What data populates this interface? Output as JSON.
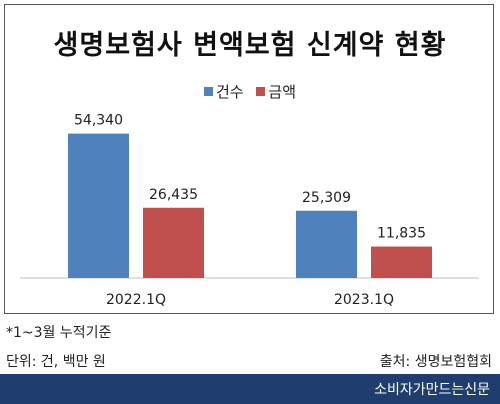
{
  "chart_data": {
    "type": "bar",
    "title": "생명보험사 변액보험 신계약 현황",
    "categories": [
      "2022.1Q",
      "2023.1Q"
    ],
    "series": [
      {
        "name": "건수",
        "values": [
          54340,
          25309
        ],
        "labels": [
          "54,340",
          "25,309"
        ],
        "color": "#4f81bd"
      },
      {
        "name": "금액",
        "values": [
          26435,
          11835
        ],
        "labels": [
          "26,435",
          "11,835"
        ],
        "color": "#c0504d"
      }
    ],
    "ylim": [
      0,
      70000
    ],
    "grid": false,
    "legend": "top-center"
  },
  "footnote": "*1~3월 누적기준",
  "unit": "단위: 건, 백만 원",
  "source": "출처: 생명보험협회",
  "brand": "소비자가만드는신문"
}
